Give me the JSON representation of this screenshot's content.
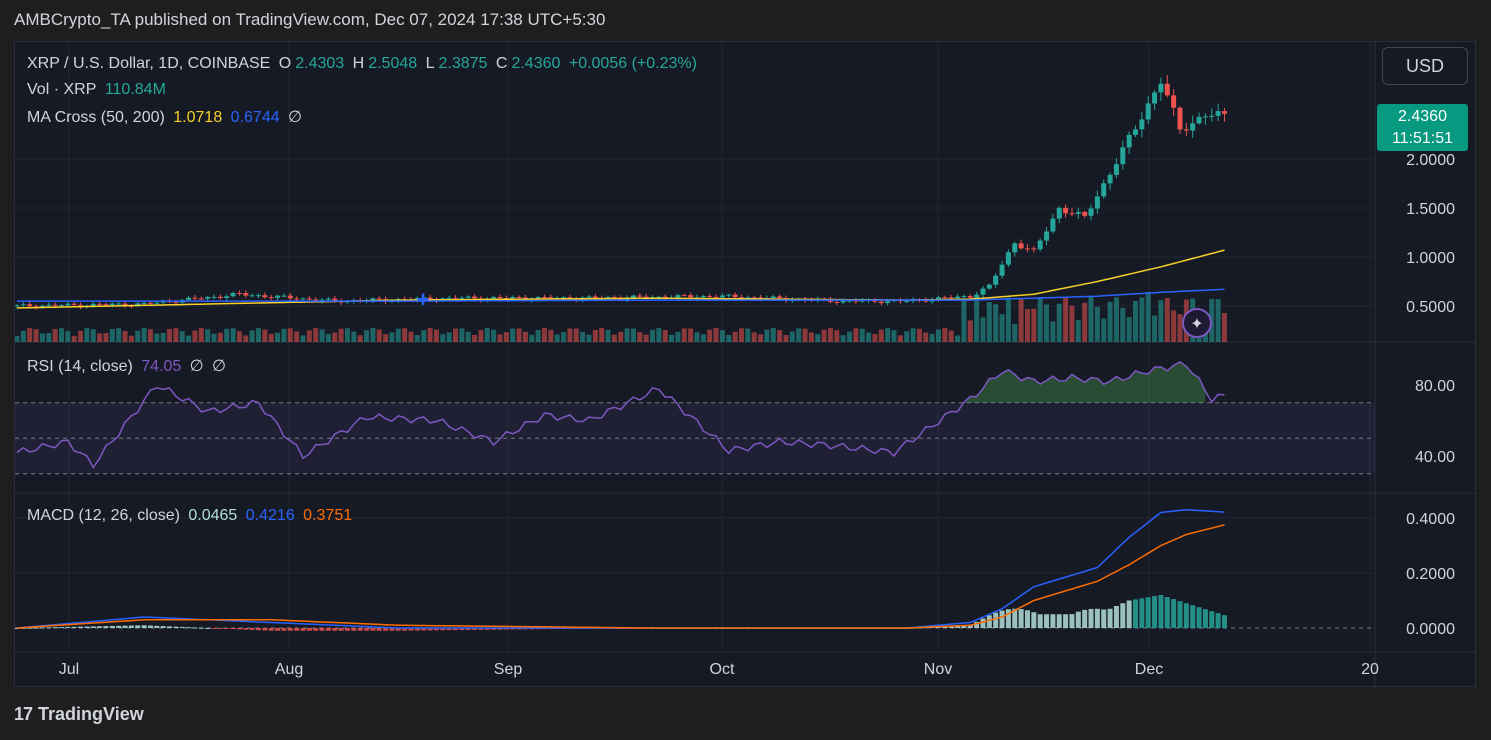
{
  "header": {
    "published": "AMBCrypto_TA published on TradingView.com, Dec 07, 2024 17:38 UTC+5:30"
  },
  "symbol": {
    "title": "XRP / U.S. Dollar, 1D, COINBASE",
    "o_label": "O",
    "o_value": "2.4303",
    "h_label": "H",
    "h_value": "2.5048",
    "l_label": "L",
    "l_value": "2.3875",
    "c_label": "C",
    "c_value": "2.4360",
    "change": "+0.0056 (+0.23%)"
  },
  "volume": {
    "label": "Vol · XRP",
    "value": "110.84M"
  },
  "ma_cross": {
    "label": "MA Cross (50, 200)",
    "ma50": "1.0718",
    "ma200": "0.6744",
    "extra": "∅"
  },
  "rsi": {
    "label": "RSI (14, close)",
    "value": "74.05",
    "extra1": "∅",
    "extra2": "∅"
  },
  "macd": {
    "label": "MACD (12, 26, close)",
    "hist": "0.0465",
    "macd": "0.4216",
    "signal": "0.3751"
  },
  "currency_button": "USD",
  "last_price": {
    "price": "2.4360",
    "countdown": "11:51:51"
  },
  "footer": {
    "brand": "TradingView",
    "logo_text": "17"
  },
  "colors": {
    "up": "#26a69a",
    "down": "#ef5350",
    "ma50": "#f7d02c",
    "ma200": "#2962ff",
    "rsi": "#7e57c2",
    "macd": "#2962ff",
    "signal": "#ff6d00"
  },
  "chart_data": {
    "type": "candlestick",
    "x_ticks": [
      "Jul",
      "Aug",
      "Sep",
      "Oct",
      "Nov",
      "Dec",
      "20"
    ],
    "price_axis": {
      "ticks": [
        "0.5000",
        "1.0000",
        "1.5000",
        "2.0000"
      ],
      "values": [
        0.5,
        1.0,
        1.5,
        2.0
      ]
    },
    "rsi_axis": {
      "ticks": [
        "80.00",
        "40.00"
      ],
      "values": [
        80,
        40
      ]
    },
    "macd_axis": {
      "ticks": [
        "0.4000",
        "0.2000",
        "0.0000"
      ],
      "values": [
        0.4,
        0.2,
        0.0
      ]
    },
    "close_path_days": [
      0,
      20,
      35,
      50,
      70,
      90,
      110,
      130,
      140,
      150,
      153,
      157,
      160,
      164,
      168,
      175,
      180,
      183,
      187,
      190
    ],
    "close_path_values": [
      0.5,
      0.52,
      0.62,
      0.55,
      0.58,
      0.58,
      0.6,
      0.55,
      0.55,
      0.6,
      0.7,
      1.15,
      1.05,
      1.5,
      1.4,
      2.2,
      2.8,
      2.3,
      2.45,
      2.436
    ],
    "ma50_days": [
      0,
      60,
      100,
      140,
      150,
      160,
      170,
      180,
      190
    ],
    "ma50_values": [
      0.48,
      0.56,
      0.58,
      0.56,
      0.57,
      0.62,
      0.75,
      0.9,
      1.07
    ],
    "ma200_days": [
      0,
      60,
      100,
      140,
      150,
      160,
      170,
      180,
      190
    ],
    "ma200_values": [
      0.55,
      0.55,
      0.56,
      0.56,
      0.56,
      0.58,
      0.6,
      0.64,
      0.67
    ],
    "rsi_days": [
      0,
      8,
      12,
      22,
      30,
      38,
      45,
      55,
      66,
      75,
      83,
      90,
      101,
      112,
      120,
      128,
      138,
      150,
      155,
      160,
      166,
      172,
      178,
      184,
      188,
      190
    ],
    "rsi_values": [
      42,
      48,
      35,
      80,
      65,
      70,
      40,
      62,
      60,
      48,
      63,
      60,
      78,
      43,
      48,
      46,
      42,
      72,
      88,
      82,
      84,
      82,
      88,
      92,
      72,
      74
    ],
    "macd_days": [
      0,
      20,
      40,
      60,
      100,
      140,
      150,
      155,
      160,
      170,
      175,
      180,
      184,
      190
    ],
    "macd_values": [
      0.0,
      0.04,
      0.02,
      0.0,
      0.0,
      0.0,
      0.02,
      0.07,
      0.15,
      0.22,
      0.33,
      0.42,
      0.43,
      0.4216
    ],
    "signal_days": [
      0,
      20,
      40,
      60,
      100,
      140,
      150,
      155,
      160,
      170,
      175,
      180,
      184,
      190
    ],
    "signal_values": [
      0.0,
      0.03,
      0.03,
      0.01,
      0.0,
      0.0,
      0.01,
      0.04,
      0.1,
      0.17,
      0.23,
      0.3,
      0.34,
      0.3751
    ]
  }
}
